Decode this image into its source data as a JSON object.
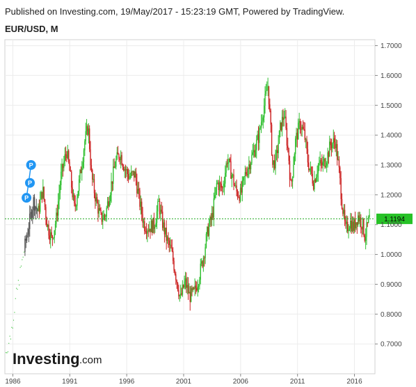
{
  "header": {
    "published": "Published on Investing.com, 19/May/2017 - 15:23:19 GMT, Powered by TradingView.",
    "symbol": "EUR/USD, M"
  },
  "logo": {
    "main": "Investing",
    "suffix": ".com"
  },
  "colors": {
    "up": "#2fbf2f",
    "down": "#cc2222",
    "neutral": "#555555",
    "grid": "#ececec",
    "price_line": "#22aa22",
    "price_badge": "#27c227",
    "marker": "#2196f3"
  },
  "markers": [
    {
      "label": "P",
      "year": 1987.6,
      "price": 1.3
    },
    {
      "label": "P",
      "year": 1987.5,
      "price": 1.24
    },
    {
      "label": "P",
      "year": 1987.2,
      "price": 1.19
    }
  ],
  "chart_data": {
    "type": "candlestick",
    "interval": "monthly",
    "title": "EUR/USD, M",
    "xlabel": "",
    "ylabel": "",
    "xlim": [
      1985.3,
      2017.8
    ],
    "ylim": [
      0.6,
      1.72
    ],
    "y_ticks": [
      "1.7000",
      "1.6000",
      "1.5000",
      "1.4000",
      "1.3000",
      "1.2000",
      "1.1000",
      "1.0000",
      "0.9000",
      "0.8000",
      "0.7000"
    ],
    "y_tick_values": [
      1.7,
      1.6,
      1.5,
      1.4,
      1.3,
      1.2,
      1.1,
      1.0,
      0.9,
      0.8,
      0.7
    ],
    "x_ticks": [
      "1986",
      "1991",
      "1996",
      "2001",
      "2006",
      "2011",
      "2016"
    ],
    "x_tick_values": [
      1986,
      1991,
      1996,
      2001,
      2006,
      2011,
      2016
    ],
    "last_price": "1.1194",
    "last_price_value": 1.1194,
    "grid": true,
    "path": [
      [
        1985.4,
        0.66
      ],
      [
        1985.9,
        0.73
      ],
      [
        1986.3,
        0.84
      ],
      [
        1986.7,
        0.93
      ],
      [
        1987.1,
        1.02
      ],
      [
        1987.5,
        1.1
      ],
      [
        1987.9,
        1.18
      ],
      [
        1988.3,
        1.14
      ],
      [
        1988.7,
        1.22
      ],
      [
        1989.1,
        1.1
      ],
      [
        1989.5,
        1.05
      ],
      [
        1989.9,
        1.12
      ],
      [
        1990.3,
        1.26
      ],
      [
        1990.8,
        1.35
      ],
      [
        1991.1,
        1.27
      ],
      [
        1991.5,
        1.15
      ],
      [
        1991.9,
        1.24
      ],
      [
        1992.4,
        1.38
      ],
      [
        1992.7,
        1.43
      ],
      [
        1993.0,
        1.26
      ],
      [
        1993.4,
        1.18
      ],
      [
        1993.8,
        1.12
      ],
      [
        1994.2,
        1.13
      ],
      [
        1994.7,
        1.23
      ],
      [
        1995.1,
        1.31
      ],
      [
        1995.5,
        1.34
      ],
      [
        1995.9,
        1.29
      ],
      [
        1996.3,
        1.26
      ],
      [
        1996.8,
        1.27
      ],
      [
        1997.2,
        1.18
      ],
      [
        1997.6,
        1.1
      ],
      [
        1998.0,
        1.09
      ],
      [
        1998.5,
        1.1
      ],
      [
        1998.9,
        1.17
      ],
      [
        1999.2,
        1.11
      ],
      [
        1999.6,
        1.05
      ],
      [
        2000.0,
        1.01
      ],
      [
        2000.4,
        0.93
      ],
      [
        2000.8,
        0.85
      ],
      [
        2001.2,
        0.91
      ],
      [
        2001.6,
        0.86
      ],
      [
        2002.0,
        0.87
      ],
      [
        2002.4,
        0.92
      ],
      [
        2002.8,
        0.99
      ],
      [
        2003.2,
        1.08
      ],
      [
        2003.6,
        1.13
      ],
      [
        2004.0,
        1.24
      ],
      [
        2004.5,
        1.22
      ],
      [
        2004.9,
        1.32
      ],
      [
        2005.3,
        1.27
      ],
      [
        2005.7,
        1.21
      ],
      [
        2006.1,
        1.2
      ],
      [
        2006.5,
        1.27
      ],
      [
        2006.9,
        1.31
      ],
      [
        2007.3,
        1.35
      ],
      [
        2007.7,
        1.4
      ],
      [
        2008.0,
        1.47
      ],
      [
        2008.5,
        1.57
      ],
      [
        2008.9,
        1.3
      ],
      [
        2009.2,
        1.32
      ],
      [
        2009.6,
        1.43
      ],
      [
        2009.9,
        1.47
      ],
      [
        2010.3,
        1.33
      ],
      [
        2010.5,
        1.22
      ],
      [
        2010.9,
        1.38
      ],
      [
        2011.3,
        1.44
      ],
      [
        2011.7,
        1.4
      ],
      [
        2012.0,
        1.31
      ],
      [
        2012.5,
        1.24
      ],
      [
        2012.9,
        1.3
      ],
      [
        2013.3,
        1.3
      ],
      [
        2013.7,
        1.33
      ],
      [
        2014.0,
        1.37
      ],
      [
        2014.4,
        1.38
      ],
      [
        2014.7,
        1.29
      ],
      [
        2015.0,
        1.17
      ],
      [
        2015.3,
        1.08
      ],
      [
        2015.7,
        1.11
      ],
      [
        2016.0,
        1.09
      ],
      [
        2016.4,
        1.13
      ],
      [
        2016.8,
        1.1
      ],
      [
        2017.0,
        1.06
      ],
      [
        2017.38,
        1.1194
      ]
    ]
  }
}
